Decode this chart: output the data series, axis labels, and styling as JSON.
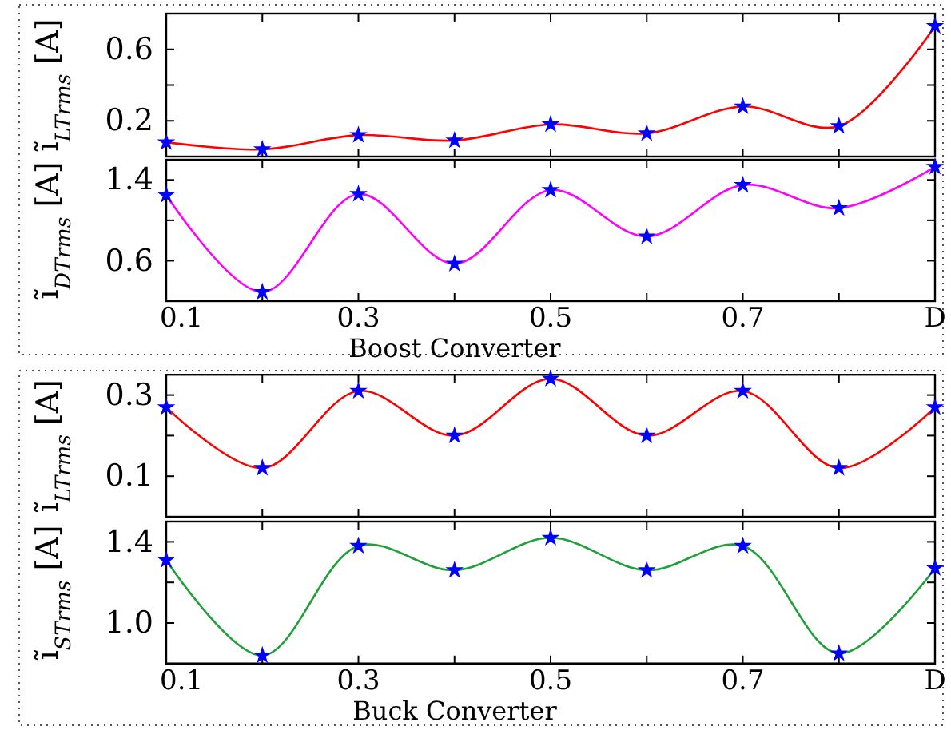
{
  "chart_data": [
    {
      "type": "line",
      "ylabel": "ĩ$_{LTrms}$ [A]",
      "x": [
        0.1,
        0.2,
        0.3,
        0.4,
        0.5,
        0.6,
        0.7,
        0.8,
        0.9
      ],
      "xlim": [
        0.1,
        0.9
      ],
      "xticks": [
        {
          "value": 0.1,
          "label": null
        },
        {
          "value": 0.2,
          "label": null
        },
        {
          "value": 0.3,
          "label": null
        },
        {
          "value": 0.4,
          "label": null
        },
        {
          "value": 0.5,
          "label": null
        },
        {
          "value": 0.6,
          "label": null
        },
        {
          "value": 0.7,
          "label": null
        },
        {
          "value": 0.8,
          "label": null
        },
        {
          "value": 0.9,
          "label": null
        }
      ],
      "ylim": [
        0,
        0.8
      ],
      "yticks": [
        0.2,
        {
          "value": 0.4,
          "label": null
        },
        0.6
      ],
      "tick_labels": "y",
      "marker": "star",
      "grid": false,
      "series": [
        {
          "color": "#ff0000",
          "values": [
            0.08,
            0.04,
            0.12,
            0.09,
            0.18,
            0.13,
            0.28,
            0.17,
            0.73
          ]
        }
      ]
    },
    {
      "type": "line",
      "ylabel": "ĩ$_{DTrms}$ [A]",
      "xlabel": "Boost Converter",
      "x": [
        0.1,
        0.2,
        0.3,
        0.4,
        0.5,
        0.6,
        0.7,
        0.8,
        0.9
      ],
      "xlim": [
        0.1,
        0.9
      ],
      "xticks": [
        0.1,
        {
          "value": 0.2,
          "label": null
        },
        0.3,
        {
          "value": 0.4,
          "label": null
        },
        0.5,
        {
          "value": 0.6,
          "label": null
        },
        0.7,
        {
          "value": 0.8,
          "label": null
        },
        {
          "value": 0.9,
          "label": "D"
        }
      ],
      "ylim": [
        0.2,
        1.6
      ],
      "yticks": [
        0.6,
        {
          "value": 1.0,
          "label": null
        },
        1.4
      ],
      "marker": "star",
      "grid": false,
      "series": [
        {
          "color": "#ff00ff",
          "values": [
            1.25,
            0.29,
            1.26,
            0.57,
            1.3,
            0.84,
            1.35,
            1.12,
            1.53
          ]
        }
      ]
    },
    {
      "type": "line",
      "ylabel": "ĩ$_{LTrms}$ [A]",
      "x": [
        0.1,
        0.2,
        0.3,
        0.4,
        0.5,
        0.6,
        0.7,
        0.8,
        0.9
      ],
      "xlim": [
        0.1,
        0.9
      ],
      "xticks": [
        {
          "value": 0.1,
          "label": null
        },
        {
          "value": 0.2,
          "label": null
        },
        {
          "value": 0.3,
          "label": null
        },
        {
          "value": 0.4,
          "label": null
        },
        {
          "value": 0.5,
          "label": null
        },
        {
          "value": 0.6,
          "label": null
        },
        {
          "value": 0.7,
          "label": null
        },
        {
          "value": 0.8,
          "label": null
        },
        {
          "value": 0.9,
          "label": null
        }
      ],
      "ylim": [
        0,
        0.35
      ],
      "yticks": [
        0.1,
        {
          "value": 0.2,
          "label": null
        },
        0.3
      ],
      "tick_labels": "y",
      "marker": "star",
      "grid": false,
      "series": [
        {
          "color": "#ff0000",
          "values": [
            0.27,
            0.12,
            0.31,
            0.2,
            0.34,
            0.2,
            0.31,
            0.12,
            0.27
          ]
        }
      ]
    },
    {
      "type": "line",
      "ylabel": "ĩ$_{STrms}$ [A]",
      "xlabel": "Buck Converter",
      "x": [
        0.1,
        0.2,
        0.3,
        0.4,
        0.5,
        0.6,
        0.7,
        0.8,
        0.9
      ],
      "xlim": [
        0.1,
        0.9
      ],
      "xticks": [
        0.1,
        {
          "value": 0.2,
          "label": null
        },
        0.3,
        {
          "value": 0.4,
          "label": null
        },
        0.5,
        {
          "value": 0.6,
          "label": null
        },
        0.7,
        {
          "value": 0.8,
          "label": null
        },
        {
          "value": 0.9,
          "label": "D"
        }
      ],
      "ylim": [
        0.8,
        1.5
      ],
      "yticks": [
        {
          "value": 1.0,
          "label": "1.0"
        },
        {
          "value": 1.2,
          "label": null
        },
        1.4
      ],
      "marker": "star",
      "grid": false,
      "series": [
        {
          "color": "#1fa03a",
          "values": [
            1.31,
            0.84,
            1.38,
            1.26,
            1.42,
            1.26,
            1.38,
            0.85,
            1.27
          ]
        }
      ]
    }
  ]
}
